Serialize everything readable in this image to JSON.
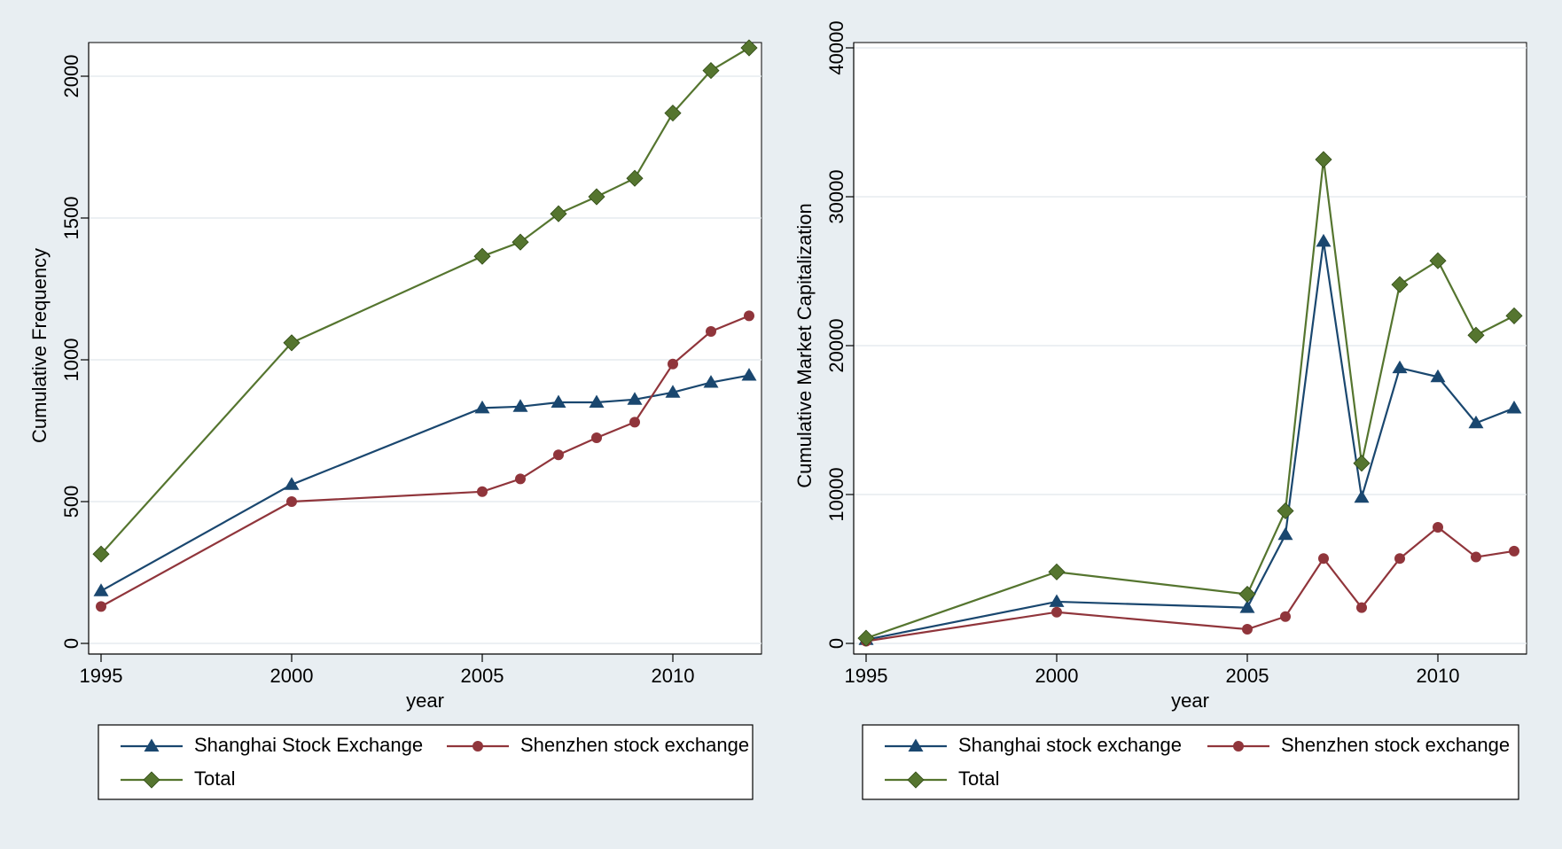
{
  "colors": {
    "background": "#e8eef2",
    "plot_region": "#ffffff",
    "grid": "#e6ecef",
    "shanghai": "#1a476f",
    "shenzhen": "#90353b",
    "total": "#55752f"
  },
  "chart_data": [
    {
      "type": "line",
      "title": "",
      "xlabel": "year",
      "ylabel": "Cumulative Frequency",
      "xlim": [
        1995,
        2012
      ],
      "ylim": [
        0,
        2100
      ],
      "xticks": [
        1995,
        2000,
        2005,
        2010
      ],
      "yticks": [
        0,
        500,
        1000,
        1500,
        2000
      ],
      "grid": true,
      "legend_position": "bottom",
      "x": [
        1995,
        2000,
        2005,
        2006,
        2007,
        2008,
        2009,
        2010,
        2011,
        2012
      ],
      "series": [
        {
          "name": "Shanghai Stock Exchange",
          "color": "#1a476f",
          "marker": "triangle",
          "values": [
            185,
            560,
            830,
            835,
            850,
            850,
            860,
            885,
            920,
            945
          ]
        },
        {
          "name": "Shenzhen stock exchange",
          "color": "#90353b",
          "marker": "circle",
          "values": [
            130,
            500,
            535,
            580,
            665,
            725,
            780,
            985,
            1100,
            1155
          ]
        },
        {
          "name": "Total",
          "color": "#55752f",
          "marker": "diamond",
          "values": [
            315,
            1060,
            1365,
            1415,
            1515,
            1575,
            1640,
            1870,
            2020,
            2100
          ]
        }
      ]
    },
    {
      "type": "line",
      "title": "",
      "xlabel": "year",
      "ylabel": "Cumulative Market Capitalization",
      "xlim": [
        1995,
        2012
      ],
      "ylim": [
        0,
        40000
      ],
      "xticks": [
        1995,
        2000,
        2005,
        2010
      ],
      "yticks": [
        0,
        10000,
        20000,
        30000,
        40000
      ],
      "grid": true,
      "legend_position": "bottom",
      "x": [
        1995,
        2000,
        2005,
        2006,
        2007,
        2008,
        2009,
        2010,
        2011,
        2012
      ],
      "series": [
        {
          "name": "Shanghai stock exchange",
          "color": "#1a476f",
          "marker": "triangle",
          "values": [
            250,
            2800,
            2400,
            7300,
            27000,
            9800,
            18500,
            17900,
            14800,
            15800
          ]
        },
        {
          "name": "Shenzhen stock exchange",
          "color": "#90353b",
          "marker": "circle",
          "values": [
            150,
            2100,
            950,
            1800,
            5700,
            2400,
            5700,
            7800,
            5800,
            6200
          ]
        },
        {
          "name": "Total",
          "color": "#55752f",
          "marker": "diamond",
          "values": [
            350,
            4800,
            3300,
            8900,
            32500,
            12100,
            24100,
            25700,
            20700,
            22000
          ]
        }
      ]
    }
  ]
}
